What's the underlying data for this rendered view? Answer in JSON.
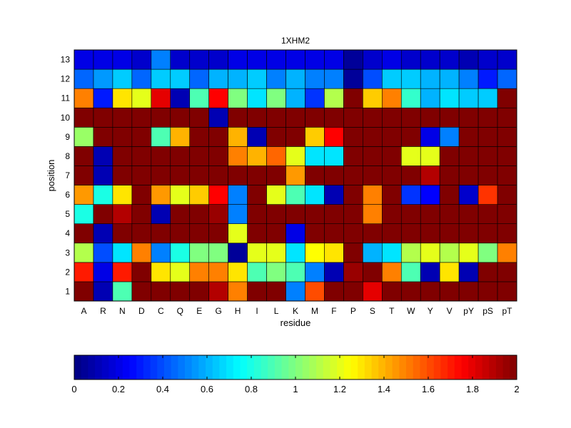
{
  "chart_data": {
    "type": "heatmap",
    "title": "1XHM2",
    "xlabel": "residue",
    "ylabel": "position",
    "x": [
      "A",
      "R",
      "N",
      "D",
      "C",
      "Q",
      "E",
      "G",
      "H",
      "I",
      "L",
      "K",
      "M",
      "F",
      "P",
      "S",
      "T",
      "W",
      "Y",
      "V",
      "pY",
      "pS",
      "pT"
    ],
    "y": [
      "1",
      "2",
      "3",
      "4",
      "5",
      "6",
      "7",
      "8",
      "9",
      "10",
      "11",
      "12",
      "13"
    ],
    "values": [
      [
        2.0,
        0.1,
        0.9,
        2.0,
        2.0,
        2.0,
        2.0,
        1.9,
        1.5,
        2.0,
        2.0,
        0.5,
        1.6,
        2.0,
        2.0,
        1.8,
        2.0,
        2.0,
        2.0,
        2.0,
        2.0,
        2.0,
        2.0
      ],
      [
        1.7,
        0.2,
        1.7,
        2.0,
        1.3,
        1.2,
        1.5,
        1.5,
        1.3,
        0.9,
        1.0,
        0.9,
        0.5,
        0.1,
        1.95,
        2.0,
        1.5,
        0.9,
        0.1,
        1.3,
        0.1,
        2.0,
        2.0
      ],
      [
        1.1,
        0.4,
        0.7,
        1.5,
        0.5,
        0.8,
        1.0,
        1.0,
        0.05,
        1.2,
        1.2,
        0.7,
        1.25,
        1.3,
        2.0,
        0.6,
        0.7,
        1.1,
        1.2,
        1.1,
        1.2,
        1.0,
        1.5
      ],
      [
        2.0,
        0.1,
        2.0,
        2.0,
        2.0,
        2.0,
        2.0,
        2.0,
        1.2,
        2.0,
        2.0,
        0.2,
        2.0,
        2.0,
        2.0,
        2.0,
        2.0,
        2.0,
        2.0,
        2.0,
        2.0,
        2.0,
        2.0
      ],
      [
        0.8,
        2.0,
        1.9,
        2.0,
        0.1,
        2.0,
        2.0,
        1.95,
        0.5,
        2.0,
        2.0,
        2.0,
        2.0,
        2.0,
        2.0,
        1.5,
        2.0,
        2.0,
        2.0,
        2.0,
        2.0,
        2.0,
        2.0
      ],
      [
        1.45,
        0.8,
        1.3,
        2.0,
        1.45,
        1.2,
        1.35,
        1.75,
        0.5,
        2.0,
        1.2,
        0.9,
        0.7,
        0.1,
        2.0,
        1.5,
        2.0,
        0.35,
        0.25,
        2.0,
        0.15,
        1.65,
        2.0
      ],
      [
        2.0,
        0.1,
        2.0,
        2.0,
        2.0,
        2.0,
        2.0,
        2.0,
        2.0,
        2.0,
        2.0,
        1.45,
        2.0,
        2.0,
        2.0,
        2.0,
        2.0,
        2.0,
        1.9,
        2.0,
        2.0,
        2.0,
        2.0
      ],
      [
        2.0,
        0.1,
        2.0,
        2.0,
        2.0,
        2.0,
        2.0,
        2.0,
        1.5,
        1.4,
        1.55,
        1.2,
        0.7,
        0.7,
        2.0,
        2.0,
        2.0,
        1.2,
        1.2,
        2.0,
        2.0,
        2.0,
        2.0
      ],
      [
        1.05,
        2.0,
        2.0,
        2.0,
        0.9,
        1.4,
        2.0,
        2.0,
        1.4,
        0.1,
        2.0,
        2.0,
        1.35,
        1.75,
        2.0,
        2.0,
        2.0,
        2.0,
        0.2,
        0.5,
        2.0,
        2.0,
        2.0
      ],
      [
        2.0,
        2.0,
        2.0,
        2.0,
        2.0,
        2.0,
        2.0,
        0.1,
        2.0,
        2.0,
        2.0,
        2.0,
        2.0,
        2.0,
        2.0,
        2.0,
        2.0,
        2.0,
        2.0,
        2.0,
        2.0,
        2.0,
        2.0
      ],
      [
        1.5,
        0.3,
        1.3,
        1.2,
        1.8,
        0.1,
        0.9,
        1.75,
        1.0,
        0.7,
        1.0,
        0.6,
        0.35,
        1.1,
        2.0,
        1.35,
        1.5,
        0.85,
        0.6,
        0.7,
        0.65,
        0.65,
        2.0
      ],
      [
        0.45,
        0.55,
        0.65,
        0.45,
        0.65,
        0.65,
        0.45,
        0.6,
        0.6,
        0.65,
        0.5,
        0.6,
        0.5,
        0.5,
        0.05,
        0.4,
        0.65,
        0.65,
        0.6,
        0.6,
        0.5,
        0.3,
        0.45
      ],
      [
        0.2,
        0.2,
        0.2,
        0.15,
        0.5,
        0.15,
        0.15,
        0.15,
        0.2,
        0.2,
        0.2,
        0.2,
        0.2,
        0.2,
        0.05,
        0.15,
        0.2,
        0.15,
        0.15,
        0.15,
        0.1,
        0.15,
        0.15
      ]
    ],
    "colorbar": {
      "min": 0,
      "max": 2,
      "ticks": [
        "0",
        "0.2",
        "0.4",
        "0.6",
        "0.8",
        "1",
        "1.2",
        "1.4",
        "1.6",
        "1.8",
        "2"
      ],
      "colormap": "jet"
    },
    "grid": true,
    "legend": "colorbar-bottom"
  }
}
